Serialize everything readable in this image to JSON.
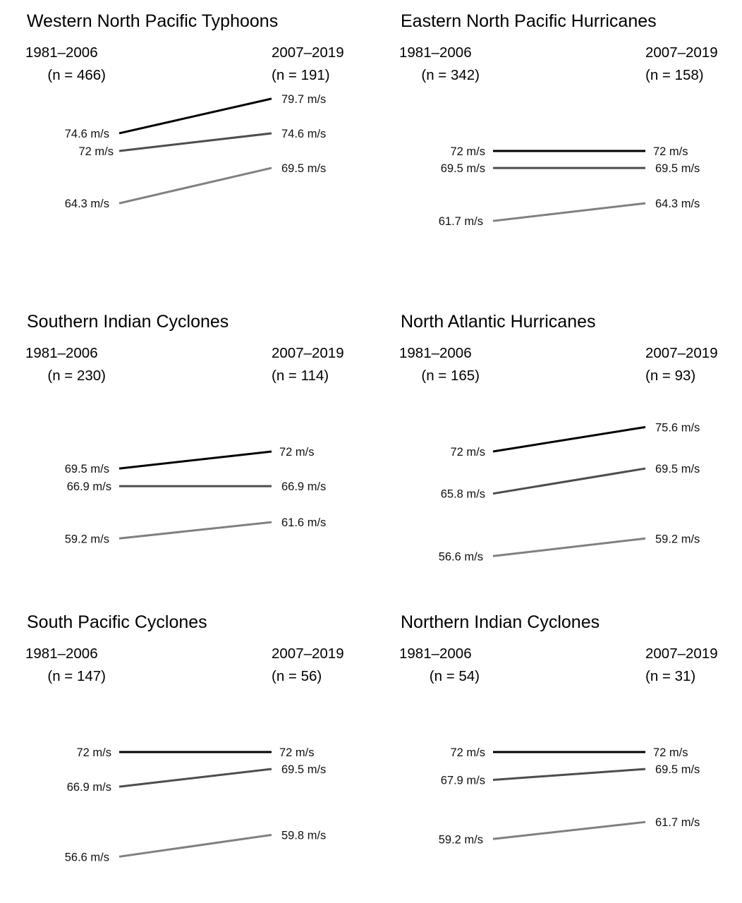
{
  "series_styles": [
    {
      "color": "#000000"
    },
    {
      "color": "#4d4d4d"
    },
    {
      "color": "#808080"
    }
  ],
  "chart_data": [
    {
      "type": "line",
      "title": "Western North Pacific Typhoons",
      "periods": [
        "1981–2006",
        "2007–2019"
      ],
      "counts": [
        "(n = 466)",
        "(n = 191)"
      ],
      "series": [
        {
          "start": 74.6,
          "end": 79.7,
          "start_label": "74.6 m/s",
          "end_label": "79.7 m/s"
        },
        {
          "start": 72,
          "end": 74.6,
          "start_label": "72 m/s",
          "end_label": "74.6 m/s"
        },
        {
          "start": 64.3,
          "end": 69.5,
          "start_label": "64.3 m/s",
          "end_label": "69.5 m/s"
        }
      ]
    },
    {
      "type": "line",
      "title": "Eastern North Pacific Hurricanes",
      "periods": [
        "1981–2006",
        "2007–2019"
      ],
      "counts": [
        "(n = 342)",
        "(n = 158)"
      ],
      "series": [
        {
          "start": 72,
          "end": 72,
          "start_label": "72 m/s",
          "end_label": "72 m/s"
        },
        {
          "start": 69.5,
          "end": 69.5,
          "start_label": "69.5 m/s",
          "end_label": "69.5 m/s"
        },
        {
          "start": 61.7,
          "end": 64.3,
          "start_label": "61.7 m/s",
          "end_label": "64.3 m/s"
        }
      ]
    },
    {
      "type": "line",
      "title": "Southern Indian Cyclones",
      "periods": [
        "1981–2006",
        "2007–2019"
      ],
      "counts": [
        "(n = 230)",
        "(n = 114)"
      ],
      "series": [
        {
          "start": 69.5,
          "end": 72,
          "start_label": "69.5 m/s",
          "end_label": "72 m/s"
        },
        {
          "start": 66.9,
          "end": 66.9,
          "start_label": "66.9 m/s",
          "end_label": "66.9 m/s"
        },
        {
          "start": 59.2,
          "end": 61.6,
          "start_label": "59.2 m/s",
          "end_label": "61.6 m/s"
        }
      ]
    },
    {
      "type": "line",
      "title": "North Atlantic Hurricanes",
      "periods": [
        "1981–2006",
        "2007–2019"
      ],
      "counts": [
        "(n = 165)",
        "(n = 93)"
      ],
      "series": [
        {
          "start": 72,
          "end": 75.6,
          "start_label": "72 m/s",
          "end_label": "75.6 m/s"
        },
        {
          "start": 65.8,
          "end": 69.5,
          "start_label": "65.8 m/s",
          "end_label": "69.5 m/s"
        },
        {
          "start": 56.6,
          "end": 59.2,
          "start_label": "56.6 m/s",
          "end_label": "59.2 m/s"
        }
      ]
    },
    {
      "type": "line",
      "title": "South Pacific Cyclones",
      "periods": [
        "1981–2006",
        "2007–2019"
      ],
      "counts": [
        "(n = 147)",
        "(n = 56)"
      ],
      "series": [
        {
          "start": 72,
          "end": 72,
          "start_label": "72 m/s",
          "end_label": "72 m/s"
        },
        {
          "start": 66.9,
          "end": 69.5,
          "start_label": "66.9 m/s",
          "end_label": "69.5 m/s"
        },
        {
          "start": 56.6,
          "end": 59.8,
          "start_label": "56.6 m/s",
          "end_label": "59.8 m/s"
        }
      ]
    },
    {
      "type": "line",
      "title": "Northern Indian Cyclones",
      "periods": [
        "1981–2006",
        "2007–2019"
      ],
      "counts": [
        "(n = 54)",
        "(n = 31)"
      ],
      "series": [
        {
          "start": 72,
          "end": 72,
          "start_label": "72 m/s",
          "end_label": "72 m/s"
        },
        {
          "start": 67.9,
          "end": 69.5,
          "start_label": "67.9 m/s",
          "end_label": "69.5 m/s"
        },
        {
          "start": 59.2,
          "end": 61.7,
          "start_label": "59.2 m/s",
          "end_label": "61.7 m/s"
        }
      ]
    }
  ]
}
